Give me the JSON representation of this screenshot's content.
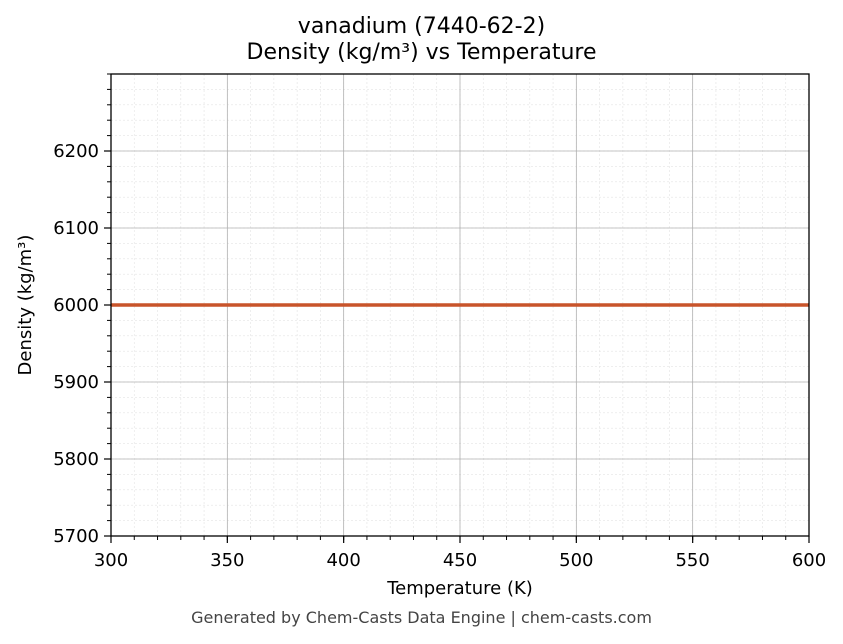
{
  "chart_data": {
    "type": "line",
    "title_line1": "vanadium (7440-62-2)",
    "title_line2": "Density (kg/m³) vs Temperature",
    "xlabel": "Temperature (K)",
    "ylabel": "Density (kg/m³)",
    "xlim": [
      300,
      600
    ],
    "ylim": [
      5700,
      6300
    ],
    "x_ticks": [
      300,
      350,
      400,
      450,
      500,
      550,
      600
    ],
    "y_ticks": [
      5700,
      5800,
      5900,
      6000,
      6100,
      6200
    ],
    "grid": true,
    "series": [
      {
        "x": [
          300,
          600
        ],
        "y": [
          6000,
          6000
        ],
        "color": "#c8542a"
      }
    ]
  },
  "footer": "Generated by Chem-Casts Data Engine | chem-casts.com"
}
